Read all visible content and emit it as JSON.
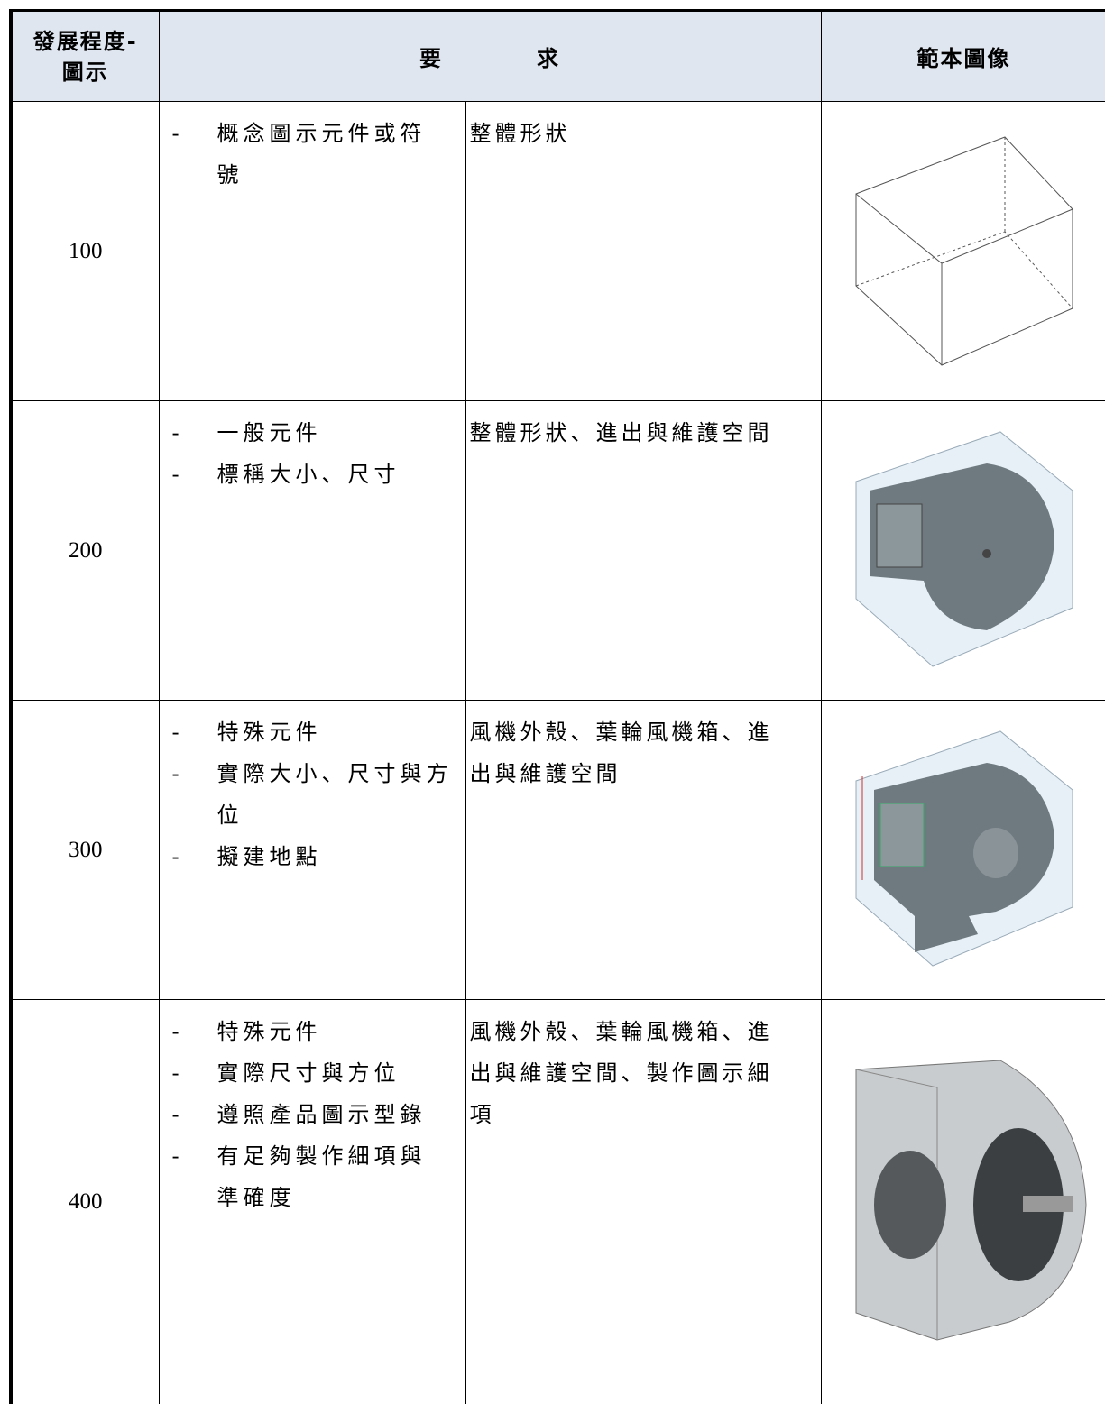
{
  "header": {
    "level": [
      "發展程度-",
      "圖示"
    ],
    "requirement": "要　　　　求",
    "image": "範本圖像"
  },
  "rows": [
    {
      "level": 100,
      "items": [
        [
          "概念圖示元件或符",
          "號"
        ]
      ],
      "requirement": [
        "整體形狀"
      ]
    },
    {
      "level": 200,
      "items": [
        [
          "一般元件"
        ],
        [
          "標稱大小、尺寸"
        ]
      ],
      "requirement": [
        "整體形狀、進出與維護空間"
      ]
    },
    {
      "level": 300,
      "items": [
        [
          "特殊元件"
        ],
        [
          "實際大小、尺寸與方",
          "位"
        ],
        [
          "擬建地點"
        ]
      ],
      "requirement": [
        "風機外殼、葉輪風機箱、進",
        "出與維護空間"
      ]
    },
    {
      "level": 400,
      "items": [
        [
          "特殊元件"
        ],
        [
          "實際尺寸與方位"
        ],
        [
          "遵照產品圖示型錄"
        ],
        [
          "有足夠製作細項與",
          "準確度"
        ]
      ],
      "requirement": [
        "風機外殼、葉輪風機箱、進",
        "出與維護空間、製作圖示細",
        "項"
      ]
    }
  ]
}
